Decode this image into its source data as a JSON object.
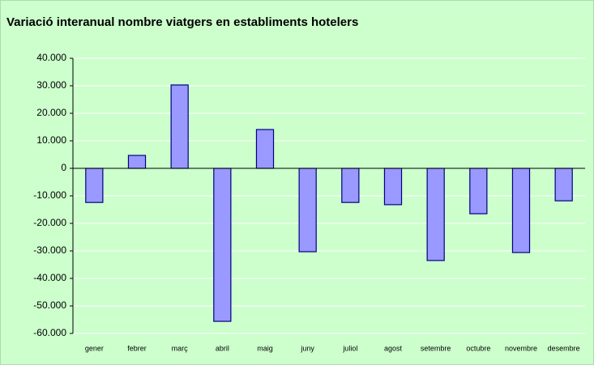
{
  "chart_data": {
    "type": "bar",
    "title": "Variació interanual nombre viatgers en establiments hotelers",
    "categories": [
      "gener",
      "febrer",
      "març",
      "abril",
      "maig",
      "juny",
      "juliol",
      "agost",
      "setembre",
      "octubre",
      "novembre",
      "desembre"
    ],
    "values": [
      -12400,
      4700,
      30300,
      -55600,
      14100,
      -30300,
      -12400,
      -13200,
      -33500,
      -16500,
      -30600,
      -11800
    ],
    "color": "#9999ff",
    "ylim": [
      -60000,
      40000
    ],
    "yticks": [
      {
        "value": -60000,
        "label": "-60.000"
      },
      {
        "value": -50000,
        "label": "-50.000"
      },
      {
        "value": -40000,
        "label": "-40.000"
      },
      {
        "value": -30000,
        "label": "-30.000"
      },
      {
        "value": -20000,
        "label": "-20.000"
      },
      {
        "value": -10000,
        "label": "-10.000"
      },
      0,
      {
        "value": 10000,
        "label": "10.000"
      },
      {
        "value": 20000,
        "label": "20.000"
      },
      {
        "value": 30000,
        "label": "30.000"
      },
      {
        "value": 40000,
        "label": "40.000"
      }
    ],
    "grid": true
  }
}
